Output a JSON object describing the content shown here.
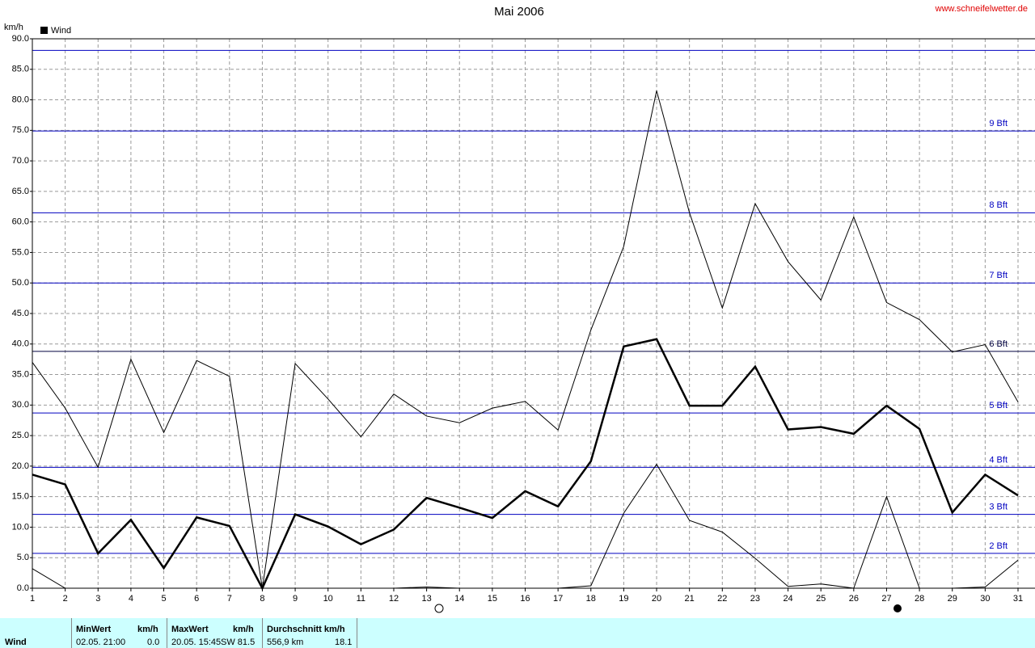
{
  "chart_data": {
    "type": "line",
    "title": "Mai 2006",
    "y_label": "km/h",
    "source": "www.schneifelwetter.de",
    "legend": "top-left",
    "grid": true,
    "x": [
      1,
      2,
      3,
      4,
      5,
      6,
      7,
      8,
      9,
      10,
      11,
      12,
      13,
      14,
      15,
      16,
      17,
      18,
      19,
      20,
      21,
      22,
      23,
      24,
      25,
      26,
      27,
      28,
      29,
      30,
      31
    ],
    "xlim": [
      1,
      31
    ],
    "xticks": [
      1,
      2,
      3,
      4,
      5,
      6,
      7,
      8,
      9,
      10,
      11,
      12,
      13,
      14,
      15,
      16,
      17,
      18,
      19,
      20,
      21,
      22,
      23,
      24,
      25,
      26,
      27,
      28,
      29,
      30,
      31
    ],
    "ylim": [
      0,
      90
    ],
    "yticks": [
      {
        "value": 0,
        "label": "0.0"
      },
      {
        "value": 5,
        "label": "5.0"
      },
      {
        "value": 10,
        "label": "10.0"
      },
      {
        "value": 15,
        "label": "15.0"
      },
      {
        "value": 20,
        "label": "20.0"
      },
      {
        "value": 25,
        "label": "25.0"
      },
      {
        "value": 30,
        "label": "30.0"
      },
      {
        "value": 35,
        "label": "35.0"
      },
      {
        "value": 40,
        "label": "40.0"
      },
      {
        "value": 45,
        "label": "45.0"
      },
      {
        "value": 50,
        "label": "50.0"
      },
      {
        "value": 55,
        "label": "55.0"
      },
      {
        "value": 60,
        "label": "60.0"
      },
      {
        "value": 65,
        "label": "65.0"
      },
      {
        "value": 70,
        "label": "70.0"
      },
      {
        "value": 75,
        "label": "75.0"
      },
      {
        "value": 80,
        "label": "80.0"
      },
      {
        "value": 85,
        "label": "85.0"
      },
      {
        "value": 90,
        "label": "90.0"
      }
    ],
    "series": [
      {
        "color": "#000000",
        "width": 1,
        "values": [
          37,
          29.5,
          19.8,
          37.5,
          25.5,
          37.3,
          34.7,
          0,
          36.8,
          31,
          24.8,
          31.8,
          28.2,
          27.1,
          29.5,
          30.6,
          25.9,
          42.3,
          56,
          81.5,
          61.5,
          45.9,
          63,
          53.5,
          47.2,
          60.8,
          46.8,
          44,
          38.7,
          39.9,
          30.5
        ]
      },
      {
        "name": "Wind",
        "color": "#000000",
        "width": 2.5,
        "values": [
          18.6,
          17,
          5.7,
          11.2,
          3.3,
          11.6,
          10.2,
          0,
          12.1,
          10.1,
          7.2,
          9.6,
          14.8,
          13.2,
          11.5,
          15.9,
          13.4,
          20.8,
          39.6,
          40.8,
          29.9,
          29.9,
          36.3,
          26,
          26.4,
          25.3,
          29.9,
          26.1,
          12.4,
          18.6,
          15.2
        ]
      },
      {
        "color": "#000000",
        "width": 1,
        "values": [
          3.2,
          0,
          0,
          0,
          0,
          0,
          0,
          0,
          0,
          0,
          0,
          0,
          0.2,
          0,
          0,
          0,
          0,
          0.4,
          12.3,
          20.3,
          11.1,
          9.2,
          4.9,
          0.3,
          0.7,
          0,
          15,
          0,
          0,
          0.2,
          4.6
        ]
      }
    ],
    "reference_lines": [
      {
        "value": 5.7,
        "label": "2 Bft",
        "color": "#0000c0"
      },
      {
        "value": 12.1,
        "label": "3 Bft",
        "color": "#0000c0"
      },
      {
        "value": 19.8,
        "label": "4 Bft",
        "color": "#0000c0"
      },
      {
        "value": 28.7,
        "label": "5 Bft",
        "color": "#0000c0"
      },
      {
        "value": 38.8,
        "label": "6 Bft",
        "color": "#000040"
      },
      {
        "value": 50,
        "label": "7 Bft",
        "color": "#0000c0"
      },
      {
        "value": 61.5,
        "label": "8 Bft",
        "color": "#0000c0"
      },
      {
        "value": 74.9,
        "label": "9 Bft",
        "color": "#0000c0"
      },
      {
        "value": 88.1,
        "color": "#0000c0"
      }
    ]
  },
  "footer": {
    "row_label": "Wind",
    "min_header": "MinWert",
    "min_unit": "km/h",
    "min_date": "02.05.  21:00",
    "min_value": "0.0",
    "max_header": "MaxWert",
    "max_unit": "km/h",
    "max_date": "20.05.  15:45",
    "max_value": "SW 81.5",
    "avg_header": "Durchschnitt km/h",
    "avg_distance": "556,9 km",
    "avg_value": "18.1"
  }
}
